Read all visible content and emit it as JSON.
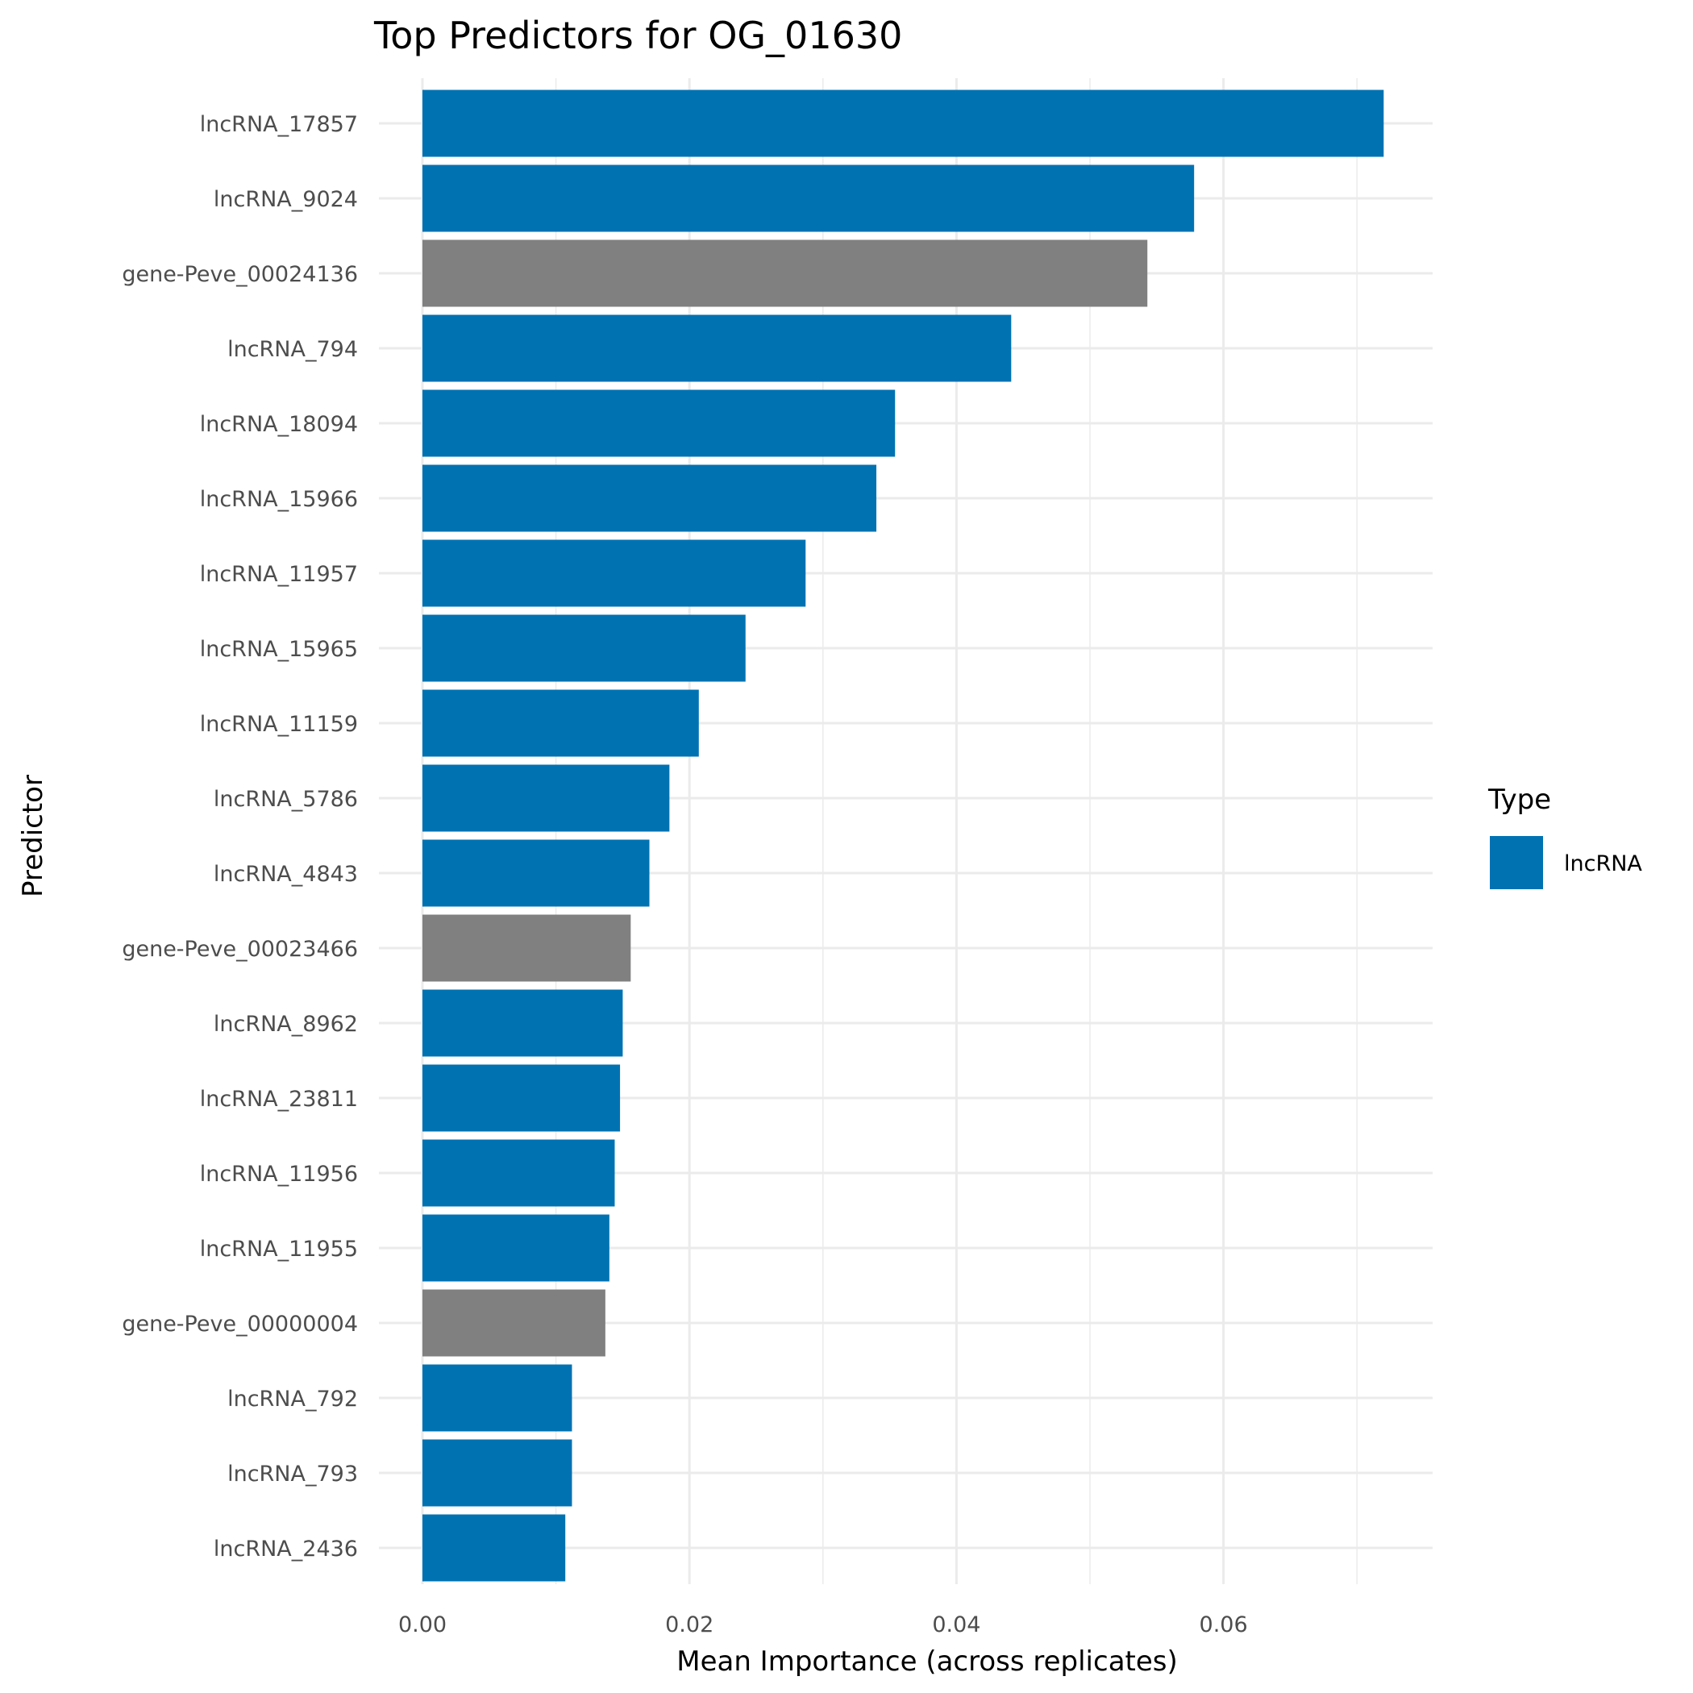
{
  "chart_data": {
    "type": "bar",
    "orientation": "horizontal",
    "title": "Top Predictors for OG_01630",
    "xlabel": "Mean Importance (across replicates)",
    "ylabel": "Predictor",
    "xlim": [
      0,
      0.0755
    ],
    "x_ticks": [
      0.0,
      0.02,
      0.04,
      0.06
    ],
    "x_tick_labels": [
      "0.00",
      "0.02",
      "0.04",
      "0.06"
    ],
    "grid": true,
    "legend": {
      "title": "Type",
      "placement": "right",
      "entries": [
        {
          "label": "lncRNA",
          "color": "#0072B2"
        }
      ]
    },
    "colors": {
      "lncRNA": "#0072B2",
      "other": "#808080"
    },
    "categories": [
      "lncRNA_17857",
      "lncRNA_9024",
      "gene-Peve_00024136",
      "lncRNA_794",
      "lncRNA_18094",
      "lncRNA_15966",
      "lncRNA_11957",
      "lncRNA_15965",
      "lncRNA_11159",
      "lncRNA_5786",
      "lncRNA_4843",
      "gene-Peve_00023466",
      "lncRNA_8962",
      "lncRNA_23811",
      "lncRNA_11956",
      "lncRNA_11955",
      "gene-Peve_00000004",
      "lncRNA_792",
      "lncRNA_793",
      "lncRNA_2436"
    ],
    "types": [
      "lncRNA",
      "lncRNA",
      "other",
      "lncRNA",
      "lncRNA",
      "lncRNA",
      "lncRNA",
      "lncRNA",
      "lncRNA",
      "lncRNA",
      "lncRNA",
      "other",
      "lncRNA",
      "lncRNA",
      "lncRNA",
      "lncRNA",
      "other",
      "lncRNA",
      "lncRNA",
      "lncRNA"
    ],
    "values": [
      0.072,
      0.0578,
      0.0543,
      0.0441,
      0.0354,
      0.034,
      0.0287,
      0.0242,
      0.0207,
      0.0185,
      0.017,
      0.0156,
      0.015,
      0.0148,
      0.0144,
      0.014,
      0.0137,
      0.0112,
      0.0112,
      0.0107
    ]
  }
}
